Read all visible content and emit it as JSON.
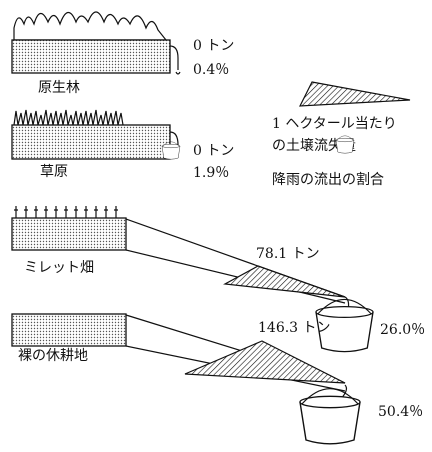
{
  "rows": [
    {
      "label": "原生林",
      "soil_loss": "0 トン",
      "runoff": "0.4％"
    },
    {
      "label": "草原",
      "soil_loss": "0 トン",
      "runoff": "1.9％"
    },
    {
      "label": "ミレット畑",
      "soil_loss": "78.1 トン",
      "runoff": "26.0％"
    },
    {
      "label": "裸の休耕地",
      "soil_loss": "146.3 トン",
      "runoff": "50.4％"
    }
  ],
  "legend": {
    "soil_loss_line1": "1 ヘクタール当たり",
    "soil_loss_line2": "の土壌流失量",
    "runoff": "降雨の流出の割合"
  }
}
